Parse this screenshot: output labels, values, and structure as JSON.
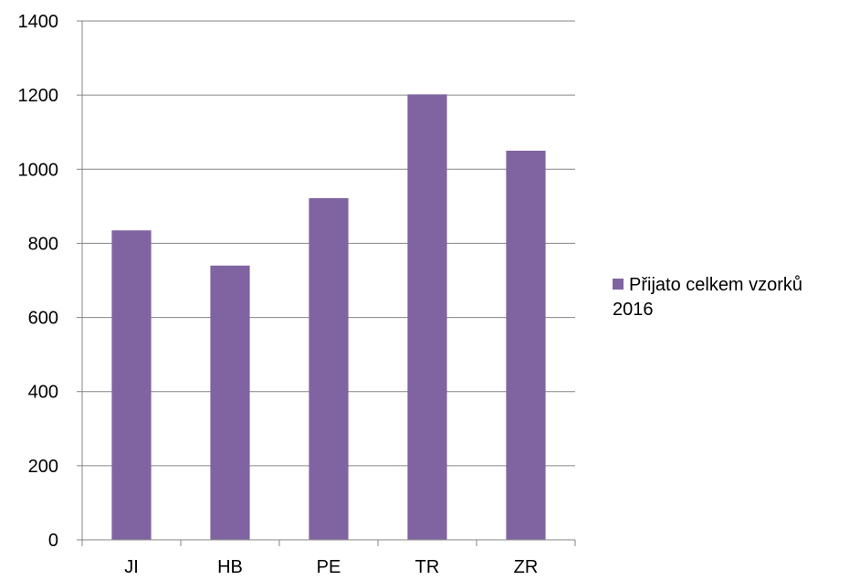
{
  "chart_data": {
    "type": "bar",
    "categories": [
      "JI",
      "HB",
      "PE",
      "TR",
      "ZR"
    ],
    "series": [
      {
        "name": "Přijato celkem vzorků 2016",
        "values": [
          835,
          740,
          922,
          1202,
          1050
        ],
        "color": "#8064A2"
      }
    ],
    "ylim": [
      0,
      1400
    ],
    "yticks": [
      "0",
      "200",
      "400",
      "600",
      "800",
      "1000",
      "1200",
      "1400"
    ],
    "grid": true,
    "legend_position": "right"
  }
}
